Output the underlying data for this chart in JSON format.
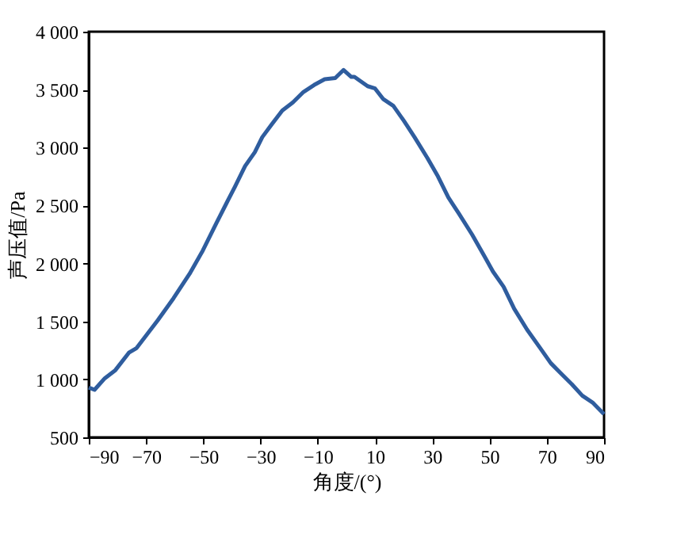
{
  "chart_data": {
    "type": "line",
    "xlabel": "角度/(°)",
    "ylabel": "声压值/Pa",
    "x": [
      -90,
      -88,
      -84.4,
      -80.7,
      -76,
      -73.3,
      -69.6,
      -65.9,
      -60.4,
      -54.8,
      -50.2,
      -45.6,
      -41.9,
      -39,
      -35.4,
      -32,
      -29.4,
      -26.1,
      -22.4,
      -18.7,
      -15,
      -11.3,
      -7.6,
      -3.9,
      -1,
      1.7,
      2.8,
      7.4,
      10,
      12.8,
      16.4,
      20.1,
      23.8,
      28.3,
      32,
      35.6,
      39.3,
      43.9,
      48.5,
      51.2,
      54.9,
      58.6,
      63.1,
      67.7,
      71.4,
      75,
      78.7,
      82.4,
      86,
      90
    ],
    "series": [
      {
        "color": "#2f5d9e",
        "values": [
          930,
          910,
          1010,
          1080,
          1230,
          1270,
          1390,
          1510,
          1700,
          1910,
          2110,
          2340,
          2520,
          2660,
          2840,
          2960,
          3090,
          3200,
          3320,
          3390,
          3480,
          3540,
          3590,
          3600,
          3670,
          3610,
          3610,
          3530,
          3510,
          3420,
          3360,
          3230,
          3090,
          2910,
          2750,
          2570,
          2430,
          2250,
          2050,
          1930,
          1800,
          1610,
          1430,
          1270,
          1140,
          1050,
          960,
          860,
          800,
          700
        ]
      }
    ],
    "xlim": [
      -90,
      90
    ],
    "xticks": [
      -90,
      -70,
      -50,
      -30,
      -10,
      10,
      30,
      50,
      70,
      90
    ],
    "ylim": [
      500,
      4000
    ],
    "yticks": [
      {
        "value": 500,
        "label": "500"
      },
      {
        "value": 1000,
        "label": "1 000"
      },
      {
        "value": 1500,
        "label": "1 500"
      },
      {
        "value": 2000,
        "label": "2 000"
      },
      {
        "value": 2500,
        "label": "2 500"
      },
      {
        "value": 3000,
        "label": "3 000"
      },
      {
        "value": 3500,
        "label": "3 500"
      },
      {
        "value": 4000,
        "label": "4 000"
      }
    ],
    "grid": false,
    "marker": "none",
    "line_style": "solid"
  }
}
